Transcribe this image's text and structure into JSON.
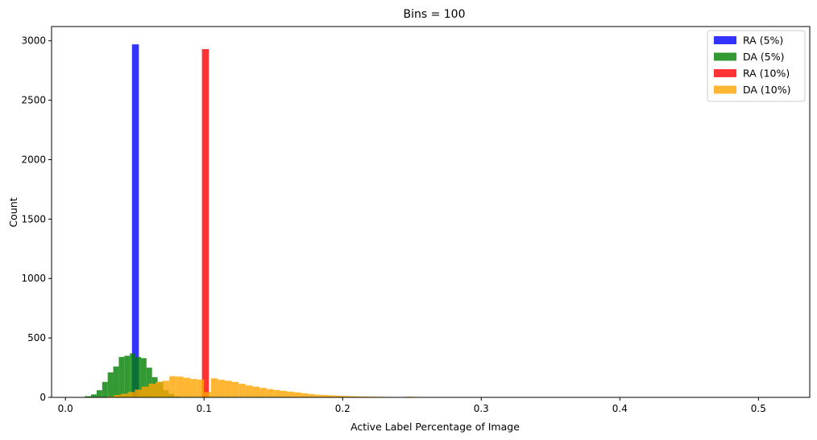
{
  "chart_data": {
    "type": "bar",
    "title": "Bins = 100",
    "xlabel": "Active Label Percentage of Image",
    "ylabel": "Count",
    "xlim": [
      -0.01,
      0.537
    ],
    "ylim": [
      0,
      3120
    ],
    "xticks": [
      0.0,
      0.1,
      0.2,
      0.3,
      0.4,
      0.5
    ],
    "xtick_labels": [
      "0.0",
      "0.1",
      "0.2",
      "0.3",
      "0.4",
      "0.5"
    ],
    "yticks": [
      0,
      500,
      1000,
      1500,
      2000,
      2500,
      3000
    ],
    "ytick_labels": [
      "0",
      "500",
      "1000",
      "1500",
      "2000",
      "2500",
      "3000"
    ],
    "grid": false,
    "legend_position": "top-right",
    "series": [
      {
        "name": "RA (5%)",
        "color": "#0000ff",
        "alpha": 0.8,
        "bins": [
          [
            0.048,
            0.053,
            2970
          ]
        ]
      },
      {
        "name": "DA (5%)",
        "color": "#008000",
        "alpha": 0.8,
        "bins": [
          [
            0.014,
            0.0185,
            10
          ],
          [
            0.0185,
            0.0225,
            25
          ],
          [
            0.0225,
            0.0265,
            60
          ],
          [
            0.0265,
            0.0305,
            130
          ],
          [
            0.0305,
            0.0345,
            210
          ],
          [
            0.0345,
            0.0385,
            260
          ],
          [
            0.0385,
            0.0425,
            340
          ],
          [
            0.0425,
            0.0465,
            350
          ],
          [
            0.0465,
            0.0505,
            370
          ],
          [
            0.0505,
            0.0545,
            340
          ],
          [
            0.0545,
            0.0585,
            330
          ],
          [
            0.0585,
            0.0625,
            250
          ],
          [
            0.0625,
            0.0665,
            170
          ],
          [
            0.0665,
            0.0705,
            130
          ],
          [
            0.0705,
            0.0745,
            60
          ],
          [
            0.0745,
            0.0785,
            30
          ],
          [
            0.0785,
            0.0825,
            10
          ]
        ]
      },
      {
        "name": "RA (10%)",
        "color": "#ff0000",
        "alpha": 0.8,
        "bins": [
          [
            0.0985,
            0.1035,
            2930
          ]
        ]
      },
      {
        "name": "DA (10%)",
        "color": "#ffa500",
        "alpha": 0.8,
        "bins": [
          [
            0.03,
            0.035,
            8
          ],
          [
            0.035,
            0.04,
            20
          ],
          [
            0.04,
            0.045,
            30
          ],
          [
            0.045,
            0.05,
            45
          ],
          [
            0.05,
            0.055,
            65
          ],
          [
            0.055,
            0.06,
            90
          ],
          [
            0.06,
            0.065,
            115
          ],
          [
            0.065,
            0.07,
            130
          ],
          [
            0.07,
            0.075,
            140
          ],
          [
            0.075,
            0.08,
            178
          ],
          [
            0.08,
            0.085,
            175
          ],
          [
            0.085,
            0.09,
            165
          ],
          [
            0.09,
            0.095,
            155
          ],
          [
            0.095,
            0.1,
            150
          ],
          [
            0.1,
            0.105,
            45
          ],
          [
            0.105,
            0.11,
            160
          ],
          [
            0.11,
            0.115,
            148
          ],
          [
            0.115,
            0.12,
            140
          ],
          [
            0.12,
            0.125,
            130
          ],
          [
            0.125,
            0.13,
            115
          ],
          [
            0.13,
            0.135,
            100
          ],
          [
            0.135,
            0.14,
            90
          ],
          [
            0.14,
            0.145,
            80
          ],
          [
            0.145,
            0.15,
            70
          ],
          [
            0.15,
            0.155,
            62
          ],
          [
            0.155,
            0.16,
            55
          ],
          [
            0.16,
            0.165,
            48
          ],
          [
            0.165,
            0.17,
            42
          ],
          [
            0.17,
            0.175,
            35
          ],
          [
            0.175,
            0.18,
            28
          ],
          [
            0.18,
            0.185,
            22
          ],
          [
            0.185,
            0.19,
            20
          ],
          [
            0.19,
            0.195,
            17
          ],
          [
            0.195,
            0.2,
            14
          ],
          [
            0.2,
            0.205,
            12
          ],
          [
            0.205,
            0.21,
            10
          ],
          [
            0.21,
            0.215,
            8
          ],
          [
            0.215,
            0.22,
            7
          ],
          [
            0.22,
            0.225,
            6
          ],
          [
            0.225,
            0.23,
            5
          ],
          [
            0.23,
            0.235,
            4
          ],
          [
            0.235,
            0.24,
            4
          ],
          [
            0.24,
            0.245,
            3
          ],
          [
            0.245,
            0.25,
            6
          ],
          [
            0.25,
            0.255,
            5
          ],
          [
            0.255,
            0.26,
            3
          ],
          [
            0.26,
            0.265,
            2
          ],
          [
            0.265,
            0.27,
            2
          ],
          [
            0.27,
            0.275,
            2
          ],
          [
            0.275,
            0.28,
            2
          ],
          [
            0.28,
            0.285,
            1
          ]
        ]
      }
    ]
  }
}
